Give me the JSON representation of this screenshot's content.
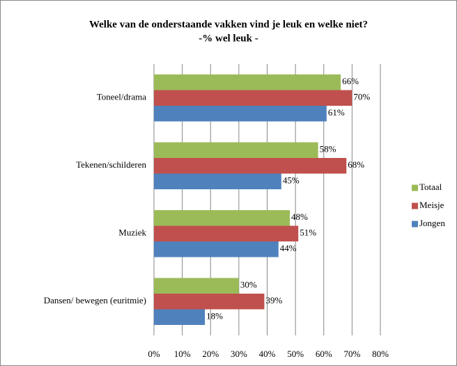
{
  "chart_data": {
    "type": "hbar",
    "title": "Welke van de onderstaande vakken vind je leuk en welke niet?",
    "subtitle": "-% wel leuk -",
    "categories": [
      "Toneel/drama",
      "Tekenen/schilderen",
      "Muziek",
      "Dansen/ bewegen (euritmie)"
    ],
    "series": [
      {
        "name": "Totaal",
        "color": "#9bbb59",
        "values": [
          66,
          58,
          48,
          30
        ],
        "value_labels": [
          "66%",
          "58%",
          "48%",
          "30%"
        ]
      },
      {
        "name": "Meisje",
        "color": "#c0504d",
        "values": [
          70,
          68,
          51,
          39
        ],
        "value_labels": [
          "70%",
          "68%",
          "51%",
          "39%"
        ]
      },
      {
        "name": "Jongen",
        "color": "#4f81bd",
        "values": [
          61,
          45,
          44,
          18
        ],
        "value_labels": [
          "61%",
          "45%",
          "44%",
          "18%"
        ]
      }
    ],
    "xlim": [
      0,
      80
    ],
    "xticks": [
      {
        "value": 0,
        "label": "0%"
      },
      {
        "value": 10,
        "label": "10%"
      },
      {
        "value": 20,
        "label": "20%"
      },
      {
        "value": 30,
        "label": "30%"
      },
      {
        "value": 40,
        "label": "40%"
      },
      {
        "value": 50,
        "label": "50%"
      },
      {
        "value": 60,
        "label": "60%"
      },
      {
        "value": 70,
        "label": "70%"
      },
      {
        "value": 80,
        "label": "80%"
      }
    ],
    "grid": true,
    "legend": "right"
  }
}
